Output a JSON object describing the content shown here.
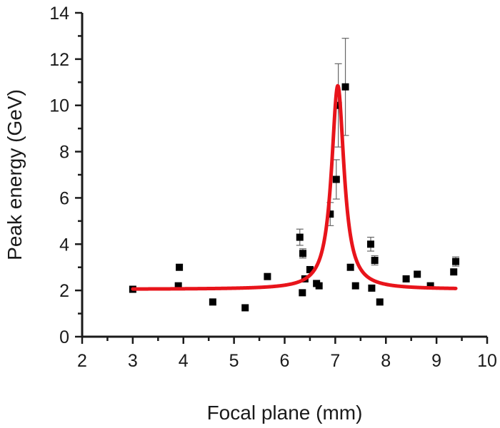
{
  "chart_data": {
    "type": "scatter",
    "xlabel": "Focal plane (mm)",
    "ylabel": "Peak energy (GeV)",
    "xlim": [
      2,
      10
    ],
    "ylim": [
      0,
      14
    ],
    "x_ticks": [
      2,
      3,
      4,
      5,
      6,
      7,
      8,
      9,
      10
    ],
    "y_ticks": [
      0,
      2,
      4,
      6,
      8,
      10,
      12,
      14
    ],
    "x_tick_labels": [
      "2",
      "3",
      "4",
      "5",
      "6",
      "7",
      "8",
      "9",
      "10"
    ],
    "y_tick_labels": [
      "0",
      "2",
      "4",
      "6",
      "8",
      "10",
      "12",
      "14"
    ],
    "grid": false,
    "legend": "none",
    "colors": {
      "points": "#000000",
      "fit": "#e8141b",
      "axes": "#1a1a1a",
      "errorbars": "#666666"
    },
    "series": [
      {
        "kind": "points",
        "points": [
          {
            "x": 3.0,
            "y": 2.05
          },
          {
            "x": 3.9,
            "y": 2.2
          },
          {
            "x": 3.92,
            "y": 3.0,
            "err": 0.12
          },
          {
            "x": 4.58,
            "y": 1.5
          },
          {
            "x": 5.22,
            "y": 1.25
          },
          {
            "x": 5.66,
            "y": 2.6
          },
          {
            "x": 6.3,
            "y": 4.3,
            "err": 0.35
          },
          {
            "x": 6.35,
            "y": 1.9
          },
          {
            "x": 6.36,
            "y": 3.6,
            "err": 0.2
          },
          {
            "x": 6.4,
            "y": 2.5
          },
          {
            "x": 6.5,
            "y": 2.9
          },
          {
            "x": 6.63,
            "y": 2.3
          },
          {
            "x": 6.68,
            "y": 2.2
          },
          {
            "x": 6.9,
            "y": 5.3,
            "err": 0.5
          },
          {
            "x": 7.02,
            "y": 6.8,
            "err": 0.85
          },
          {
            "x": 7.06,
            "y": 10.0,
            "err": 1.8
          },
          {
            "x": 7.2,
            "y": 10.8,
            "err": 2.1
          },
          {
            "x": 7.3,
            "y": 3.0,
            "err": 0.12
          },
          {
            "x": 7.4,
            "y": 2.2
          },
          {
            "x": 7.7,
            "y": 4.0,
            "err": 0.3
          },
          {
            "x": 7.72,
            "y": 2.1
          },
          {
            "x": 7.78,
            "y": 3.3,
            "err": 0.2
          },
          {
            "x": 7.88,
            "y": 1.5
          },
          {
            "x": 8.4,
            "y": 2.5
          },
          {
            "x": 8.62,
            "y": 2.7
          },
          {
            "x": 8.88,
            "y": 2.2
          },
          {
            "x": 9.34,
            "y": 2.8
          },
          {
            "x": 9.38,
            "y": 3.25,
            "err": 0.2
          }
        ]
      },
      {
        "kind": "fit",
        "shape": "lorentzian",
        "baseline": 2.05,
        "amplitude": 8.8,
        "center": 7.05,
        "half_width": 0.15,
        "x_range": [
          3.0,
          9.38
        ]
      }
    ]
  }
}
